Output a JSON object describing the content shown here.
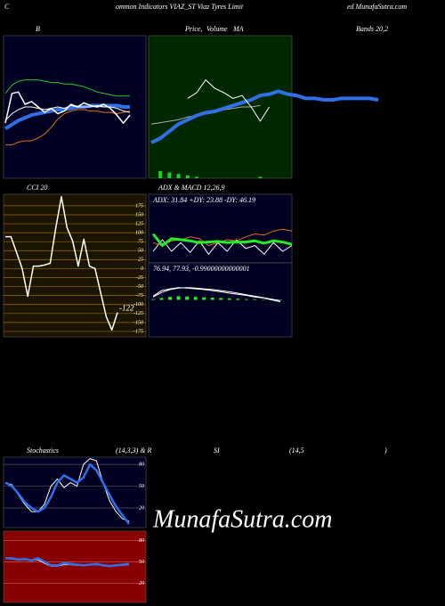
{
  "header": [
    "C",
    "ommon Indicators VIAZ_ST Viaz Tyres Limit",
    "ed MunafaSutra.com"
  ],
  "watermark": "MunafaSutra.com",
  "chart_data": [
    {
      "type": "line",
      "title_parts": [
        "B",
        "Bands 20,2"
      ],
      "background": "#000022",
      "ylim": [
        0,
        100
      ],
      "series": [
        {
          "color": "#22cc22",
          "width": 1,
          "values": [
            60,
            66,
            69,
            70,
            70,
            70,
            69,
            68,
            68,
            67,
            67,
            66,
            65,
            63,
            61,
            60,
            59,
            58,
            58,
            58
          ]
        },
        {
          "color": "#e07010",
          "width": 1,
          "values": [
            22,
            22,
            24,
            25,
            25,
            27,
            30,
            35,
            41,
            45,
            47,
            48,
            48,
            47,
            47,
            46,
            46,
            45,
            46,
            47
          ]
        },
        {
          "color": "#2f6fe8",
          "width": 4,
          "values": [
            34,
            37,
            40,
            42,
            44,
            45,
            46,
            47,
            48,
            48,
            49,
            50,
            50,
            51,
            51,
            51,
            51,
            51,
            50,
            50
          ]
        },
        {
          "color": "#ffffff",
          "width": 1,
          "values": [
            40,
            45,
            48,
            50,
            50,
            49,
            48,
            49,
            50,
            49,
            51,
            50,
            50,
            50,
            51,
            50,
            50,
            49,
            47,
            46
          ]
        },
        {
          "color": "#ffffff",
          "width": 1.5,
          "values": [
            38,
            60,
            61,
            52,
            54,
            50,
            46,
            49,
            45,
            47,
            52,
            50,
            53,
            51,
            50,
            52,
            49,
            44,
            38,
            44
          ]
        }
      ]
    },
    {
      "type": "line",
      "title_parts": [
        "Price,",
        "Volume",
        "MA"
      ],
      "background": "#002800",
      "ylim": [
        0,
        100
      ],
      "series": [
        {
          "color": "#22cc22",
          "style": "bar",
          "values": [
            null,
            5,
            4,
            3,
            2,
            1,
            null,
            null,
            null,
            null,
            null,
            null,
            1,
            null,
            null,
            null,
            null,
            null,
            null,
            null,
            null,
            null,
            null,
            null,
            null,
            null
          ]
        },
        {
          "color": "#aaaaaa",
          "width": 1,
          "values": [
            38,
            39,
            40,
            41,
            43,
            44,
            45,
            46,
            48,
            49,
            50,
            50,
            51,
            null,
            null,
            null,
            null,
            null,
            null,
            null,
            null,
            null,
            null,
            null,
            null,
            null
          ]
        },
        {
          "color": "#2f6fe8",
          "width": 4,
          "values": [
            25,
            28,
            33,
            38,
            41,
            44,
            46,
            47,
            49,
            51,
            53,
            55,
            58,
            59,
            61,
            59,
            58,
            56,
            56,
            55,
            55,
            56,
            56,
            56,
            56,
            55
          ]
        },
        {
          "color": "#ffffff",
          "width": 1,
          "values": [
            null,
            null,
            null,
            null,
            56,
            60,
            69,
            63,
            60,
            56,
            58,
            50,
            40,
            50,
            null,
            null,
            null,
            null,
            null,
            null,
            null,
            null,
            null,
            null,
            null,
            null
          ]
        }
      ]
    },
    {
      "type": "line",
      "title": "CCI 20",
      "background": "#1a1400",
      "grid": true,
      "grid_color": "#a06800",
      "ylim": [
        -190,
        207
      ],
      "yticks": [
        175,
        150,
        125,
        100,
        75,
        50,
        25,
        0,
        -25,
        -50,
        -75,
        -100,
        -125,
        -150,
        -175
      ],
      "color": "#ffffff",
      "values": [
        89,
        89,
        45,
        0,
        -77,
        7,
        7,
        10,
        15,
        114,
        200,
        114,
        77,
        7,
        82,
        7,
        0,
        -67,
        -134,
        -171,
        -122
      ],
      "label_last": true
    },
    {
      "type": "line",
      "title": "ADX  & MACD 12,26,9",
      "text": "ADX: 31.84  +DY: 23.88  -DY: 46.19",
      "background": "#000022",
      "ylim": [
        0,
        100
      ],
      "series": [
        {
          "color": "#ffffff",
          "width": 1,
          "values": [
            20,
            40,
            20,
            35,
            18,
            38,
            15,
            35,
            20,
            40,
            25,
            30,
            15,
            35,
            20,
            30
          ]
        },
        {
          "color": "#e07010",
          "width": 1,
          "values": [
            35,
            30,
            38,
            40,
            45,
            42,
            30,
            35,
            40,
            38,
            45,
            50,
            48,
            55,
            58,
            55
          ]
        },
        {
          "color": "#22ee22",
          "width": 3,
          "values": [
            50,
            30,
            42,
            40,
            38,
            35,
            36,
            37,
            35,
            36,
            36,
            38,
            34,
            38,
            36,
            32
          ]
        }
      ]
    },
    {
      "type": "line",
      "text": "76.94,  77.93,  -0.99000000000001",
      "background": "#000022",
      "ylim": [
        -100,
        100
      ],
      "series": [
        {
          "color": "#22ee22",
          "style": "bar",
          "values": [
            2,
            5,
            8,
            10,
            9,
            8,
            7,
            6,
            5,
            4,
            3,
            2,
            2,
            1,
            0,
            -1
          ]
        },
        {
          "color": "#ffffff",
          "width": 1,
          "values": [
            10,
            25,
            30,
            33,
            32,
            30,
            28,
            25,
            22,
            18,
            15,
            12,
            8,
            5,
            0,
            -5
          ]
        },
        {
          "color": "#ffffff",
          "width": 1,
          "values": [
            8,
            20,
            28,
            32,
            33,
            32,
            30,
            28,
            25,
            22,
            18,
            14,
            10,
            6,
            2,
            -2
          ]
        }
      ]
    },
    {
      "type": "line",
      "title_parts": [
        "Stochastics",
        "(14,3,3) & R"
      ],
      "background": "#000022",
      "grid": true,
      "grid_color": "#555555",
      "ylim": [
        -7,
        90
      ],
      "yticks": [
        80,
        50,
        20
      ],
      "series": [
        {
          "color": "#ffffff",
          "width": 1,
          "values": [
            55,
            52,
            38,
            25,
            15,
            15,
            25,
            50,
            60,
            48,
            55,
            50,
            80,
            88,
            85,
            55,
            30,
            15,
            5,
            2
          ]
        },
        {
          "color": "#2f6fe8",
          "width": 2.5,
          "values": [
            55,
            50,
            40,
            28,
            20,
            15,
            20,
            35,
            55,
            65,
            60,
            55,
            62,
            80,
            72,
            55,
            38,
            22,
            10,
            -2
          ]
        }
      ]
    },
    {
      "type": "line",
      "title_parts": [
        "SI",
        "(14,5",
        ")"
      ],
      "background": "#880000",
      "grid": true,
      "grid_color": "#bb5555",
      "ylim": [
        -7,
        93
      ],
      "yticks": [
        80,
        50,
        20
      ],
      "series": [
        {
          "color": "#ffffff",
          "width": 1,
          "values": [
            55,
            54,
            54,
            53,
            52,
            53,
            48,
            44,
            44,
            46,
            46,
            45,
            45,
            46,
            46,
            45,
            44,
            46,
            45,
            46
          ]
        },
        {
          "color": "#2f6fe8",
          "width": 2.5,
          "values": [
            55,
            55,
            53,
            54,
            52,
            55,
            50,
            45,
            45,
            48,
            47,
            46,
            45,
            46,
            47,
            45,
            44,
            45,
            46,
            47
          ]
        }
      ]
    }
  ]
}
